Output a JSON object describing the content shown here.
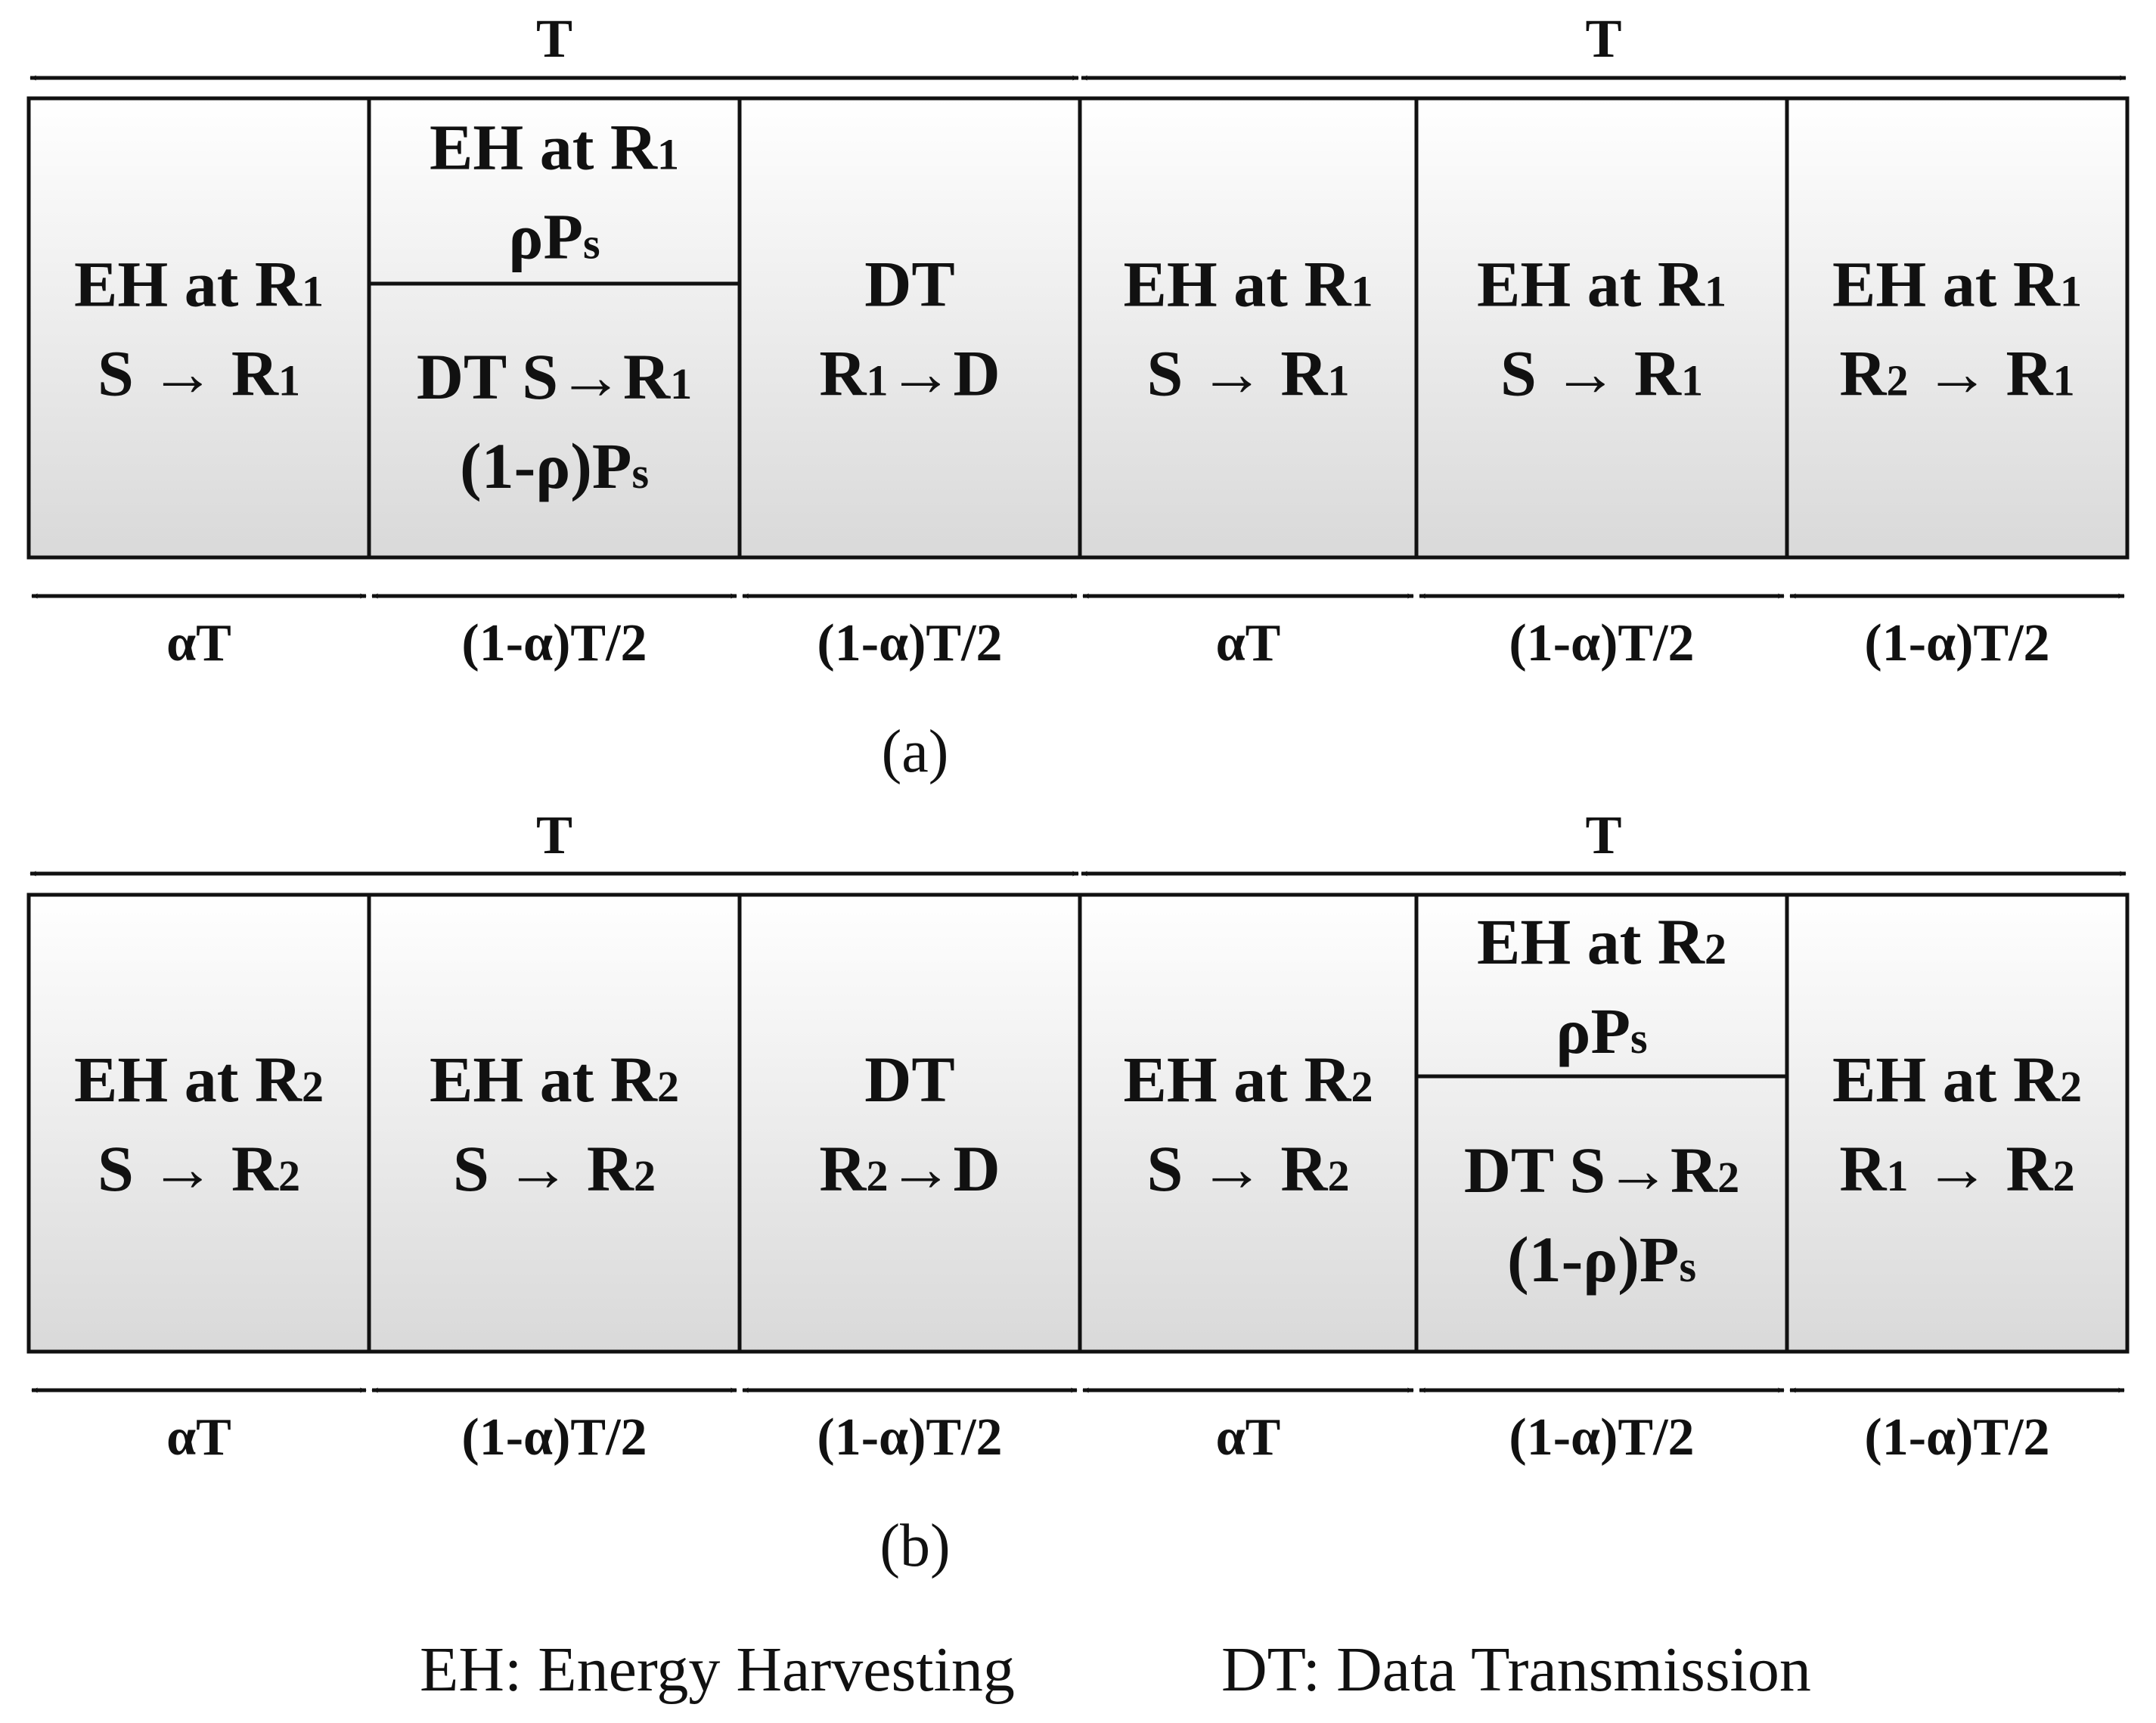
{
  "period_label": "T",
  "panels": [
    {
      "caption": "(a)",
      "cells": [
        {
          "lines": [
            [
              {
                "t": "EH at R"
              },
              {
                "t": "1",
                "sub": true
              }
            ],
            [
              {
                "t": "S → R"
              },
              {
                "t": "1",
                "sub": true
              }
            ]
          ]
        },
        {
          "split": true,
          "top": [
            [
              {
                "t": "EH at R"
              },
              {
                "t": "1",
                "sub": true
              }
            ],
            [
              {
                "t": "ρP"
              },
              {
                "t": "s",
                "sub": true
              }
            ]
          ],
          "bottom": [
            [
              {
                "t": "DT S→R"
              },
              {
                "t": "1",
                "sub": true
              }
            ],
            [
              {
                "t": "(1-ρ)P"
              },
              {
                "t": "s",
                "sub": true
              }
            ]
          ]
        },
        {
          "lines": [
            [
              {
                "t": "DT"
              }
            ],
            [
              {
                "t": "R"
              },
              {
                "t": "1",
                "sub": true
              },
              {
                "t": "→D"
              }
            ]
          ]
        },
        {
          "lines": [
            [
              {
                "t": "EH at R"
              },
              {
                "t": "1",
                "sub": true
              }
            ],
            [
              {
                "t": "S → R"
              },
              {
                "t": "1",
                "sub": true
              }
            ]
          ]
        },
        {
          "lines": [
            [
              {
                "t": "EH at R"
              },
              {
                "t": "1",
                "sub": true
              }
            ],
            [
              {
                "t": "S → R"
              },
              {
                "t": "1",
                "sub": true
              }
            ]
          ]
        },
        {
          "lines": [
            [
              {
                "t": "EH at R"
              },
              {
                "t": "1",
                "sub": true
              }
            ],
            [
              {
                "t": "R"
              },
              {
                "t": "2",
                "sub": true
              },
              {
                "t": " → R"
              },
              {
                "t": "1",
                "sub": true
              }
            ]
          ]
        }
      ],
      "durations": [
        "αT",
        "(1-α)T/2",
        "(1-α)T/2",
        "αT",
        "(1-α)T/2",
        "(1-α)T/2"
      ]
    },
    {
      "caption": "(b)",
      "cells": [
        {
          "lines": [
            [
              {
                "t": "EH at R"
              },
              {
                "t": "2",
                "sub": true
              }
            ],
            [
              {
                "t": "S → R"
              },
              {
                "t": "2",
                "sub": true
              }
            ]
          ]
        },
        {
          "lines": [
            [
              {
                "t": "EH at R"
              },
              {
                "t": "2",
                "sub": true
              }
            ],
            [
              {
                "t": "S → R"
              },
              {
                "t": "2",
                "sub": true
              }
            ]
          ]
        },
        {
          "lines": [
            [
              {
                "t": "DT"
              }
            ],
            [
              {
                "t": "R"
              },
              {
                "t": "2",
                "sub": true
              },
              {
                "t": "→D"
              }
            ]
          ]
        },
        {
          "lines": [
            [
              {
                "t": "EH at R"
              },
              {
                "t": "2",
                "sub": true
              }
            ],
            [
              {
                "t": "S → R"
              },
              {
                "t": "2",
                "sub": true
              }
            ]
          ]
        },
        {
          "split": true,
          "top": [
            [
              {
                "t": "EH at R"
              },
              {
                "t": "2",
                "sub": true
              }
            ],
            [
              {
                "t": "ρP"
              },
              {
                "t": "s",
                "sub": true
              }
            ]
          ],
          "bottom": [
            [
              {
                "t": "DT S→R"
              },
              {
                "t": "2",
                "sub": true
              }
            ],
            [
              {
                "t": "(1-ρ)P"
              },
              {
                "t": "s",
                "sub": true
              }
            ]
          ]
        },
        {
          "lines": [
            [
              {
                "t": "EH at R"
              },
              {
                "t": "2",
                "sub": true
              }
            ],
            [
              {
                "t": "R"
              },
              {
                "t": "1",
                "sub": true
              },
              {
                "t": " → R"
              },
              {
                "t": "2",
                "sub": true
              }
            ]
          ]
        }
      ],
      "durations": [
        "αT",
        "(1-α)T/2",
        "(1-α)T/2",
        "αT",
        "(1-α)T/2",
        "(1-α)T/2"
      ]
    }
  ],
  "legend": {
    "eh": "EH: Energy Harvesting",
    "dt": "DT: Data Transmission"
  },
  "colors": {
    "line": "#111111",
    "cell_top": "#ffffff",
    "cell_bottom": "#d9d9d9"
  }
}
